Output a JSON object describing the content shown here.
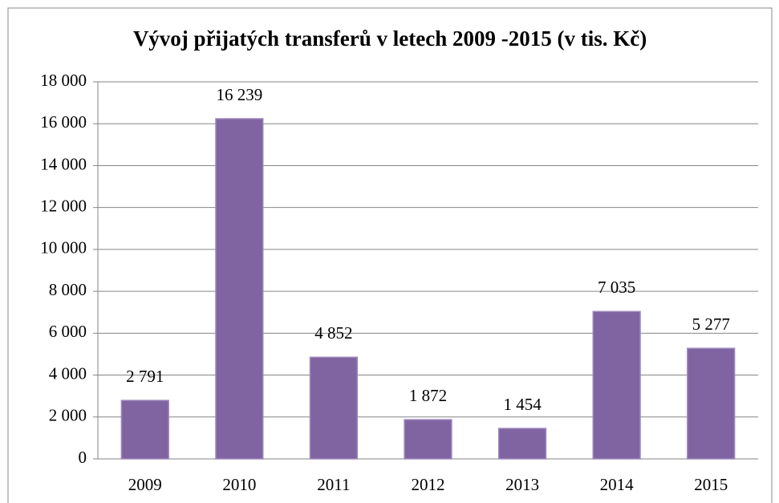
{
  "chart_data": {
    "type": "bar",
    "title": "Vývoj přijatých transferů v letech 2009 -2015 (v tis. Kč)",
    "categories": [
      "2009",
      "2010",
      "2011",
      "2012",
      "2013",
      "2014",
      "2015"
    ],
    "values": [
      2791,
      16239,
      4852,
      1872,
      1454,
      7035,
      5277
    ],
    "value_labels": [
      "2 791",
      "16 239",
      "4 852",
      "1 872",
      "1 454",
      "7 035",
      "5 277"
    ],
    "color": "#8064a2",
    "ylim": [
      0,
      18000
    ],
    "yticks": [
      0,
      {
        "value": 2000,
        "label": "2 000"
      },
      {
        "value": 4000,
        "label": "4 000"
      },
      {
        "value": 6000,
        "label": "6 000"
      },
      {
        "value": 8000,
        "label": "8 000"
      },
      {
        "value": 10000,
        "label": "10 000"
      },
      {
        "value": 12000,
        "label": "12 000"
      },
      {
        "value": 14000,
        "label": "14 000"
      },
      {
        "value": 16000,
        "label": "16 000"
      },
      {
        "value": 18000,
        "label": "18 000"
      }
    ],
    "grid": true
  }
}
